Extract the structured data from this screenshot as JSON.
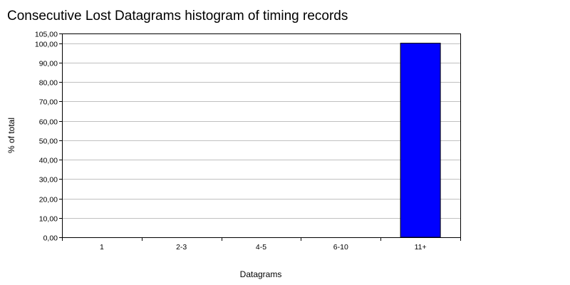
{
  "title": "Consecutive Lost Datagrams histogram of timing records",
  "chart_data": {
    "type": "bar",
    "title": "Consecutive Lost Datagrams histogram of timing records",
    "xlabel": "Datagrams",
    "ylabel": "% of total",
    "categories": [
      "1",
      "2-3",
      "4-5",
      "6-10",
      "11+"
    ],
    "values": [
      0,
      0,
      0,
      0,
      100
    ],
    "ylim": [
      0,
      105
    ],
    "yticks": [
      "0,00",
      "10,00",
      "20,00",
      "30,00",
      "40,00",
      "50,00",
      "60,00",
      "70,00",
      "80,00",
      "90,00",
      "100,00",
      "105,00"
    ],
    "grid": true,
    "bar_color": "#0000FF"
  }
}
